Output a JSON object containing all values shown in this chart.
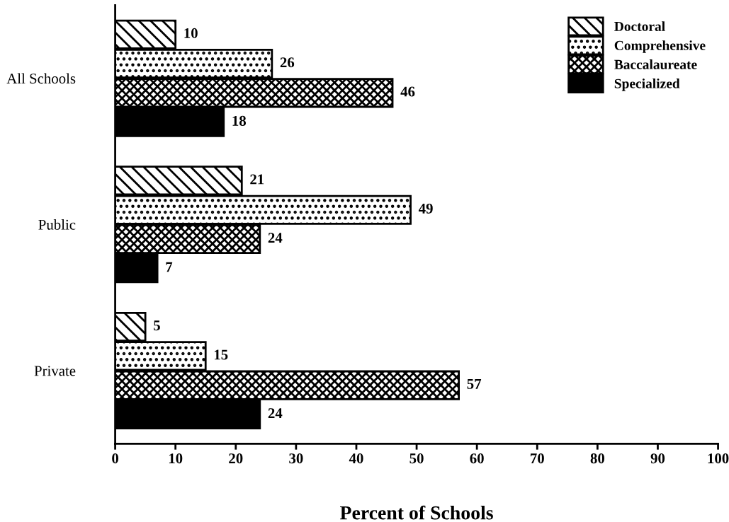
{
  "chart_data": {
    "type": "bar",
    "orientation": "horizontal",
    "xlabel": "Percent of Schools",
    "categories": [
      "All Schools",
      "Public",
      "Private"
    ],
    "series": [
      {
        "name": "Doctoral",
        "color": "#000000",
        "values": [
          10,
          21,
          5
        ]
      },
      {
        "name": "Comprehensive",
        "color": "#000000",
        "values": [
          26,
          49,
          15
        ]
      },
      {
        "name": "Baccalaureate",
        "color": "#000000",
        "values": [
          46,
          24,
          57
        ]
      },
      {
        "name": "Specialized",
        "color": "#000000",
        "values": [
          18,
          7,
          24
        ]
      }
    ],
    "xlim": [
      0,
      100
    ],
    "xticks": [
      0,
      10,
      20,
      30,
      40,
      50,
      60,
      70,
      80,
      90,
      100
    ],
    "data_labels": true,
    "legend": "top right",
    "grid": false
  }
}
